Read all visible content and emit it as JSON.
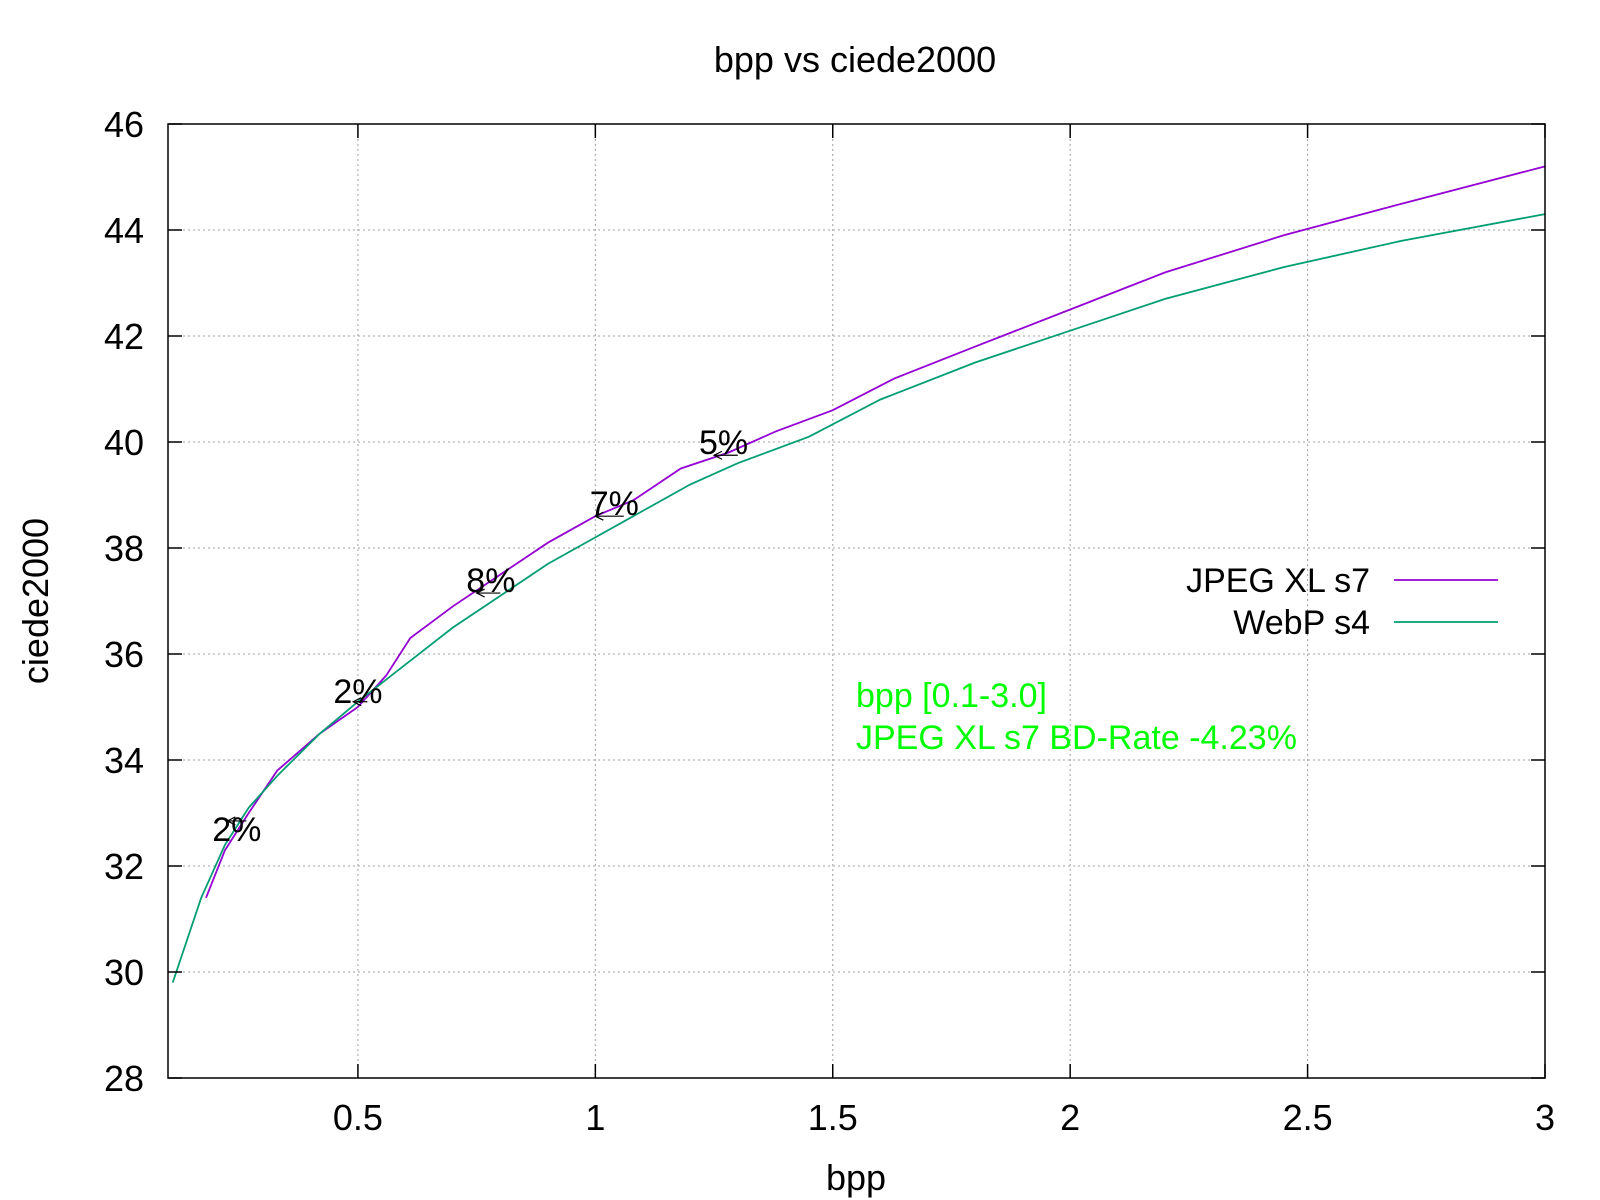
{
  "chart_data": {
    "type": "line",
    "title": "bpp vs ciede2000",
    "xlabel": "bpp",
    "ylabel": "ciede2000",
    "xlim": [
      0.1,
      3.0
    ],
    "ylim": [
      28,
      46
    ],
    "xticks": [
      0.5,
      1,
      1.5,
      2,
      2.5,
      3
    ],
    "xtick_labels": [
      "0.5",
      "1",
      "1.5",
      "2",
      "2.5",
      "3"
    ],
    "yticks": [
      28,
      30,
      32,
      34,
      36,
      38,
      40,
      42,
      44,
      46
    ],
    "ytick_labels": [
      "28",
      "30",
      "32",
      "34",
      "36",
      "38",
      "40",
      "42",
      "44",
      "46"
    ],
    "grid": true,
    "legend_position": "right",
    "series": [
      {
        "name": "JPEG XL s7",
        "color": "#9400d3",
        "points": [
          [
            0.18,
            31.4
          ],
          [
            0.22,
            32.3
          ],
          [
            0.27,
            33.0
          ],
          [
            0.33,
            33.8
          ],
          [
            0.42,
            34.5
          ],
          [
            0.5,
            35.0
          ],
          [
            0.56,
            35.6
          ],
          [
            0.61,
            36.3
          ],
          [
            0.7,
            36.9
          ],
          [
            0.8,
            37.5
          ],
          [
            0.9,
            38.1
          ],
          [
            1.0,
            38.6
          ],
          [
            1.08,
            38.9
          ],
          [
            1.18,
            39.5
          ],
          [
            1.28,
            39.8
          ],
          [
            1.38,
            40.2
          ],
          [
            1.5,
            40.6
          ],
          [
            1.63,
            41.2
          ],
          [
            1.8,
            41.8
          ],
          [
            2.0,
            42.5
          ],
          [
            2.2,
            43.2
          ],
          [
            2.45,
            43.9
          ],
          [
            2.7,
            44.5
          ],
          [
            3.0,
            45.2
          ]
        ]
      },
      {
        "name": "WebP s4",
        "color": "#009e73",
        "points": [
          [
            0.11,
            29.8
          ],
          [
            0.17,
            31.4
          ],
          [
            0.22,
            32.4
          ],
          [
            0.27,
            33.1
          ],
          [
            0.33,
            33.7
          ],
          [
            0.42,
            34.5
          ],
          [
            0.5,
            35.1
          ],
          [
            0.6,
            35.8
          ],
          [
            0.7,
            36.5
          ],
          [
            0.8,
            37.1
          ],
          [
            0.9,
            37.7
          ],
          [
            1.0,
            38.2
          ],
          [
            1.1,
            38.7
          ],
          [
            1.2,
            39.2
          ],
          [
            1.3,
            39.6
          ],
          [
            1.45,
            40.1
          ],
          [
            1.6,
            40.8
          ],
          [
            1.8,
            41.5
          ],
          [
            2.0,
            42.1
          ],
          [
            2.2,
            42.7
          ],
          [
            2.45,
            43.3
          ],
          [
            2.7,
            43.8
          ],
          [
            3.0,
            44.3
          ]
        ]
      }
    ],
    "annotations": [
      {
        "text": "2%",
        "x": 0.245,
        "y": 32.7,
        "arrow_to_x": 0.225,
        "arrow_from_x": 0.265,
        "arrow_y": 32.85
      },
      {
        "text": "2%",
        "x": 0.5,
        "y": 35.3,
        "arrow_to_x": 0.49,
        "arrow_from_x": 0.52,
        "arrow_y": 35.1
      },
      {
        "text": "8%",
        "x": 0.78,
        "y": 37.4,
        "arrow_to_x": 0.75,
        "arrow_from_x": 0.8,
        "arrow_y": 37.15
      },
      {
        "text": "7%",
        "x": 1.04,
        "y": 38.85,
        "arrow_to_x": 1.0,
        "arrow_from_x": 1.06,
        "arrow_y": 38.6
      },
      {
        "text": "5%",
        "x": 1.27,
        "y": 40.0,
        "arrow_to_x": 1.25,
        "arrow_from_x": 1.3,
        "arrow_y": 39.75
      }
    ],
    "info_text": [
      "bpp [0.1-3.0]",
      "JPEG XL s7 BD-Rate -4.23%"
    ],
    "info_color": "#00ff00"
  }
}
